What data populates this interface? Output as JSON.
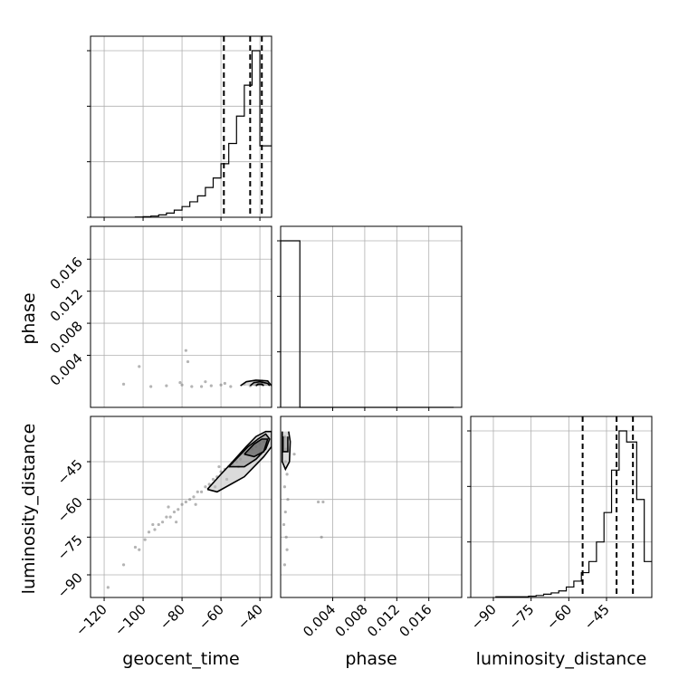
{
  "chart_data": {
    "type": "corner",
    "parameters": [
      "geocent_time",
      "phase",
      "luminosity_distance"
    ],
    "labels": {
      "geocent_time": "geocent_time",
      "phase": "phase",
      "luminosity_distance": "luminosity_distance"
    },
    "ranges": {
      "geocent_time": [
        -127,
        -34
      ],
      "phase": [
        -0.0025,
        0.0201
      ],
      "luminosity_distance": [
        -99,
        -27
      ]
    },
    "ticks": {
      "geocent_time": [
        -120,
        -100,
        -80,
        -60,
        -40
      ],
      "phase": [
        0.004,
        0.008,
        0.012,
        0.016
      ],
      "luminosity_distance": [
        -90,
        -75,
        -60,
        -45
      ]
    },
    "tick_labels": {
      "geocent_time": [
        "−120",
        "−100",
        "−80",
        "−60",
        "−40"
      ],
      "phase": [
        "0.004",
        "0.008",
        "0.012",
        "0.016"
      ],
      "luminosity_distance": [
        "−90",
        "−75",
        "−60",
        "−45"
      ]
    },
    "histograms": {
      "geocent_time": {
        "bin_edges": [
          -104,
          -100,
          -96,
          -92,
          -88,
          -84,
          -80,
          -76,
          -72,
          -68,
          -64,
          -60,
          -56,
          -52,
          -48,
          -44,
          -40,
          -36,
          -34
        ],
        "counts": [
          0.2,
          0.5,
          1,
          2,
          3.5,
          6,
          9,
          13,
          18,
          25,
          33,
          45,
          62,
          85,
          111,
          140,
          60,
          60
        ],
        "quantiles": [
          -58.5,
          -45,
          -39
        ]
      },
      "phase": {
        "bin_edges": [
          -0.0025,
          -0.0013,
          -0.0001,
          0.0011,
          0.0023,
          0.0035,
          0.0047,
          0.0059,
          0.0071,
          0.0083,
          0.0095,
          0.0107,
          0.0119,
          0.0131,
          0.0143,
          0.0155,
          0.0167,
          0.0179,
          0.0191
        ],
        "counts": [
          100,
          100,
          0,
          0,
          0,
          0,
          0,
          0,
          0,
          0,
          0,
          0,
          0,
          0,
          0,
          0,
          0,
          0
        ],
        "quantiles": []
      },
      "luminosity_distance": {
        "bin_edges": [
          -89,
          -85,
          -82,
          -79,
          -76,
          -73,
          -70,
          -67,
          -64,
          -61,
          -58,
          -55,
          -52,
          -49,
          -46,
          -43,
          -40,
          -37,
          -33,
          -30,
          -27
        ],
        "counts": [
          1,
          1,
          1,
          1,
          2,
          3,
          5,
          7,
          10,
          16,
          25,
          38,
          55,
          85,
          130,
          195,
          255,
          238,
          150,
          55
        ],
        "quantiles": [
          -54.5,
          -41,
          -34.5
        ]
      }
    },
    "scatter_panels": [
      {
        "x": "geocent_time",
        "y": "phase",
        "points": [
          [
            -42,
            0.0003
          ],
          [
            -45,
            0.0002
          ],
          [
            -48,
            0.0004
          ],
          [
            -55,
            0.0001
          ],
          [
            -60,
            0.0003
          ],
          [
            -65,
            0.0002
          ],
          [
            -70,
            0.0001
          ],
          [
            -75,
            0.0001
          ],
          [
            -80,
            0.0003
          ],
          [
            -88,
            0.0002
          ],
          [
            -96,
            0.0001
          ],
          [
            -110,
            0.0004
          ],
          [
            -102,
            0.0026
          ],
          [
            -78,
            0.0046
          ],
          [
            -77,
            0.0032
          ],
          [
            -81,
            0.0006
          ],
          [
            -68,
            0.0007
          ],
          [
            -58,
            0.0005
          ],
          [
            -39,
            0.0008
          ]
        ],
        "contours": [
          [
            [
              -50,
              0.0002
            ],
            [
              -47,
              0.0007
            ],
            [
              -42,
              0.0009
            ],
            [
              -36,
              0.0008
            ],
            [
              -34,
              0.0002
            ]
          ],
          [
            [
              -45,
              0.0002
            ],
            [
              -43,
              0.0006
            ],
            [
              -40,
              0.0007
            ],
            [
              -36,
              0.0005
            ],
            [
              -35,
              0.0002
            ]
          ],
          [
            [
              -42,
              0.0002
            ],
            [
              -41,
              0.0004
            ],
            [
              -39,
              0.0004
            ],
            [
              -38,
              0.0002
            ]
          ]
        ]
      },
      {
        "x": "geocent_time",
        "y": "luminosity_distance",
        "points": [
          [
            -110,
            -86
          ],
          [
            -104,
            -79
          ],
          [
            -102,
            -80
          ],
          [
            -99,
            -76
          ],
          [
            -97,
            -73
          ],
          [
            -94,
            -72
          ],
          [
            -92,
            -70
          ],
          [
            -90,
            -69
          ],
          [
            -88,
            -67
          ],
          [
            -86,
            -67
          ],
          [
            -84,
            -65
          ],
          [
            -82,
            -64
          ],
          [
            -80,
            -62
          ],
          [
            -78,
            -61
          ],
          [
            -76,
            -60
          ],
          [
            -74,
            -59
          ],
          [
            -72,
            -57
          ],
          [
            -70,
            -57
          ],
          [
            -68,
            -55
          ],
          [
            -66,
            -54
          ],
          [
            -64,
            -52
          ],
          [
            -62,
            -51
          ],
          [
            -60,
            -49
          ],
          [
            -58,
            -48
          ],
          [
            -56,
            -47
          ],
          [
            -54,
            -46
          ],
          [
            -52,
            -45
          ],
          [
            -50,
            -44
          ],
          [
            -48,
            -42
          ],
          [
            -46,
            -41
          ],
          [
            -44,
            -40
          ],
          [
            -42,
            -39
          ],
          [
            -40,
            -38
          ],
          [
            -38,
            -37
          ],
          [
            -118,
            -95
          ],
          [
            -95,
            -70
          ],
          [
            -83,
            -69
          ],
          [
            -73,
            -62
          ],
          [
            -87,
            -63
          ],
          [
            -63,
            -55
          ],
          [
            -57,
            -52
          ],
          [
            -61,
            -47
          ],
          [
            -51,
            -47
          ]
        ],
        "contours": [
          [
            [
              -67,
              -56
            ],
            [
              -60,
              -50
            ],
            [
              -54,
              -45
            ],
            [
              -47,
              -39
            ],
            [
              -42,
              -35
            ],
            [
              -37,
              -33
            ],
            [
              -34,
              -33
            ],
            [
              -34,
              -39
            ],
            [
              -38,
              -43
            ],
            [
              -43,
              -47
            ],
            [
              -48,
              -51
            ],
            [
              -55,
              -54
            ],
            [
              -62,
              -57
            ],
            [
              -67,
              -56
            ]
          ],
          [
            [
              -56,
              -47
            ],
            [
              -51,
              -43
            ],
            [
              -46,
              -39
            ],
            [
              -41,
              -36
            ],
            [
              -37,
              -34
            ],
            [
              -35,
              -36
            ],
            [
              -37,
              -40
            ],
            [
              -42,
              -44
            ],
            [
              -48,
              -47
            ],
            [
              -56,
              -47
            ]
          ],
          [
            [
              -48,
              -42
            ],
            [
              -43,
              -38
            ],
            [
              -39,
              -36
            ],
            [
              -36,
              -36
            ],
            [
              -38,
              -41
            ],
            [
              -43,
              -43
            ],
            [
              -48,
              -42
            ]
          ]
        ]
      },
      {
        "x": "phase",
        "y": "luminosity_distance",
        "points": [
          [
            -0.002,
            -35
          ],
          [
            -0.0018,
            -40
          ],
          [
            -0.0019,
            -45
          ],
          [
            -0.0017,
            -50
          ],
          [
            -0.002,
            -55
          ],
          [
            -0.0016,
            -60
          ],
          [
            -0.0019,
            -65
          ],
          [
            -0.0021,
            -70
          ],
          [
            -0.0018,
            -75
          ],
          [
            -0.0017,
            -80
          ],
          [
            -0.002,
            -86
          ],
          [
            0.0022,
            -61
          ],
          [
            0.0028,
            -61
          ],
          [
            0.0026,
            -75
          ],
          [
            -0.0008,
            -42
          ]
        ],
        "contours": [
          [
            [
              -0.0023,
              -33
            ],
            [
              -0.0023,
              -45
            ],
            [
              -0.0019,
              -48
            ],
            [
              -0.0014,
              -45
            ],
            [
              -0.0013,
              -37
            ],
            [
              -0.0015,
              -33
            ]
          ],
          [
            [
              -0.0022,
              -35
            ],
            [
              -0.0022,
              -41
            ],
            [
              -0.0016,
              -41
            ],
            [
              -0.0016,
              -35
            ]
          ]
        ]
      }
    ],
    "grid": true
  }
}
